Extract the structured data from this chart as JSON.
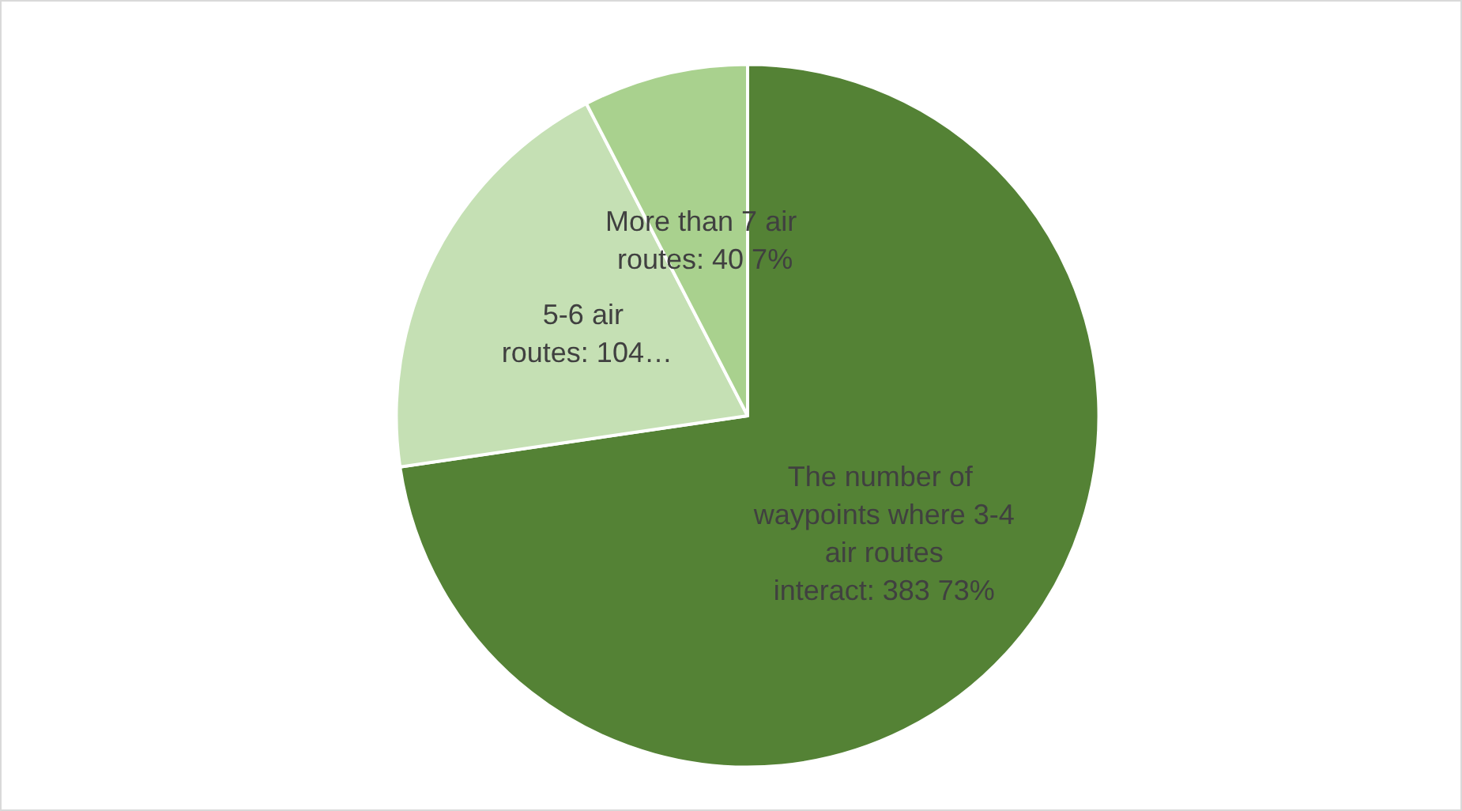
{
  "chart_data": {
    "type": "pie",
    "categories": [
      "The number of waypoints where 3-4 air routes interact",
      "5-6 air routes",
      "More than 7 air routes"
    ],
    "values": [
      383,
      104,
      40
    ],
    "value_labels": [
      "383 73%",
      "104…",
      "40 7%"
    ],
    "colors": [
      "#548235",
      "#c5e0b4",
      "#a9d18e"
    ],
    "legend": false
  }
}
